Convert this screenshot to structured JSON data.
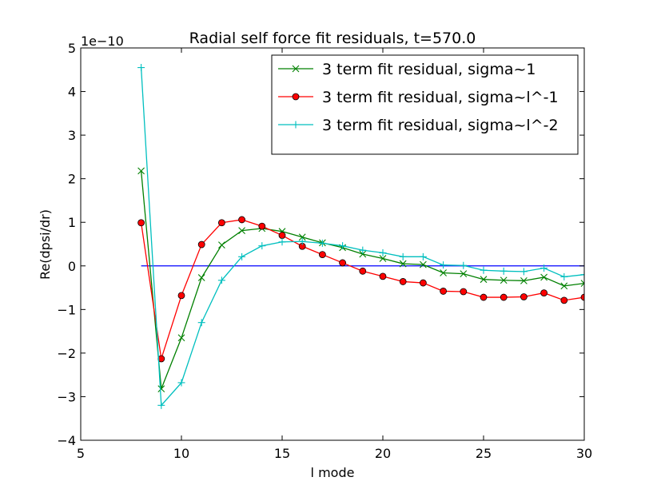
{
  "chart_data": {
    "type": "line",
    "title": "Radial self force fit residuals, t=570.0",
    "xlabel": "l mode",
    "ylabel": "Re(dpsi/dr)",
    "y_offset_label": "1e−10",
    "xlim": [
      5,
      30
    ],
    "ylim": [
      -4,
      5
    ],
    "x_ticks": [
      5,
      10,
      15,
      20,
      25,
      30
    ],
    "y_ticks": [
      -4,
      -3,
      -2,
      -1,
      0,
      1,
      2,
      3,
      4,
      5
    ],
    "x_tick_labels": [
      "5",
      "10",
      "15",
      "20",
      "25",
      "30"
    ],
    "y_tick_labels": [
      "−4",
      "−3",
      "−2",
      "−1",
      "0",
      "1",
      "2",
      "3",
      "4",
      "5"
    ],
    "grid": false,
    "legend_position": "top-right",
    "reference_line": {
      "y": 0,
      "x_range": [
        8,
        30
      ],
      "color": "#0000ff"
    },
    "x": [
      8,
      9,
      10,
      11,
      12,
      13,
      14,
      15,
      16,
      17,
      18,
      19,
      20,
      21,
      22,
      23,
      24,
      25,
      26,
      27,
      28,
      29,
      30
    ],
    "series": [
      {
        "name": "3 term fit residual, sigma~1",
        "color": "#008000",
        "marker": "x",
        "values": [
          2.18,
          -2.82,
          -1.65,
          -0.27,
          0.48,
          0.81,
          0.86,
          0.79,
          0.66,
          0.53,
          0.42,
          0.27,
          0.17,
          0.05,
          0.03,
          -0.16,
          -0.18,
          -0.31,
          -0.33,
          -0.34,
          -0.26,
          -0.46,
          -0.4
        ]
      },
      {
        "name": "3 term fit residual, sigma~l^-1",
        "color": "#ff0000",
        "marker": "o",
        "values": [
          0.99,
          -2.13,
          -0.68,
          0.49,
          0.99,
          1.06,
          0.91,
          0.7,
          0.45,
          0.26,
          0.07,
          -0.12,
          -0.24,
          -0.36,
          -0.39,
          -0.58,
          -0.59,
          -0.72,
          -0.72,
          -0.71,
          -0.62,
          -0.79,
          -0.72
        ]
      },
      {
        "name": "3 term fit residual, sigma~l^-2",
        "color": "#00bfbf",
        "marker": "+",
        "values": [
          4.55,
          -3.2,
          -2.68,
          -1.3,
          -0.33,
          0.21,
          0.46,
          0.55,
          0.56,
          0.52,
          0.46,
          0.36,
          0.3,
          0.21,
          0.21,
          0.02,
          0.01,
          -0.1,
          -0.12,
          -0.13,
          -0.05,
          -0.25,
          -0.2
        ]
      }
    ]
  }
}
